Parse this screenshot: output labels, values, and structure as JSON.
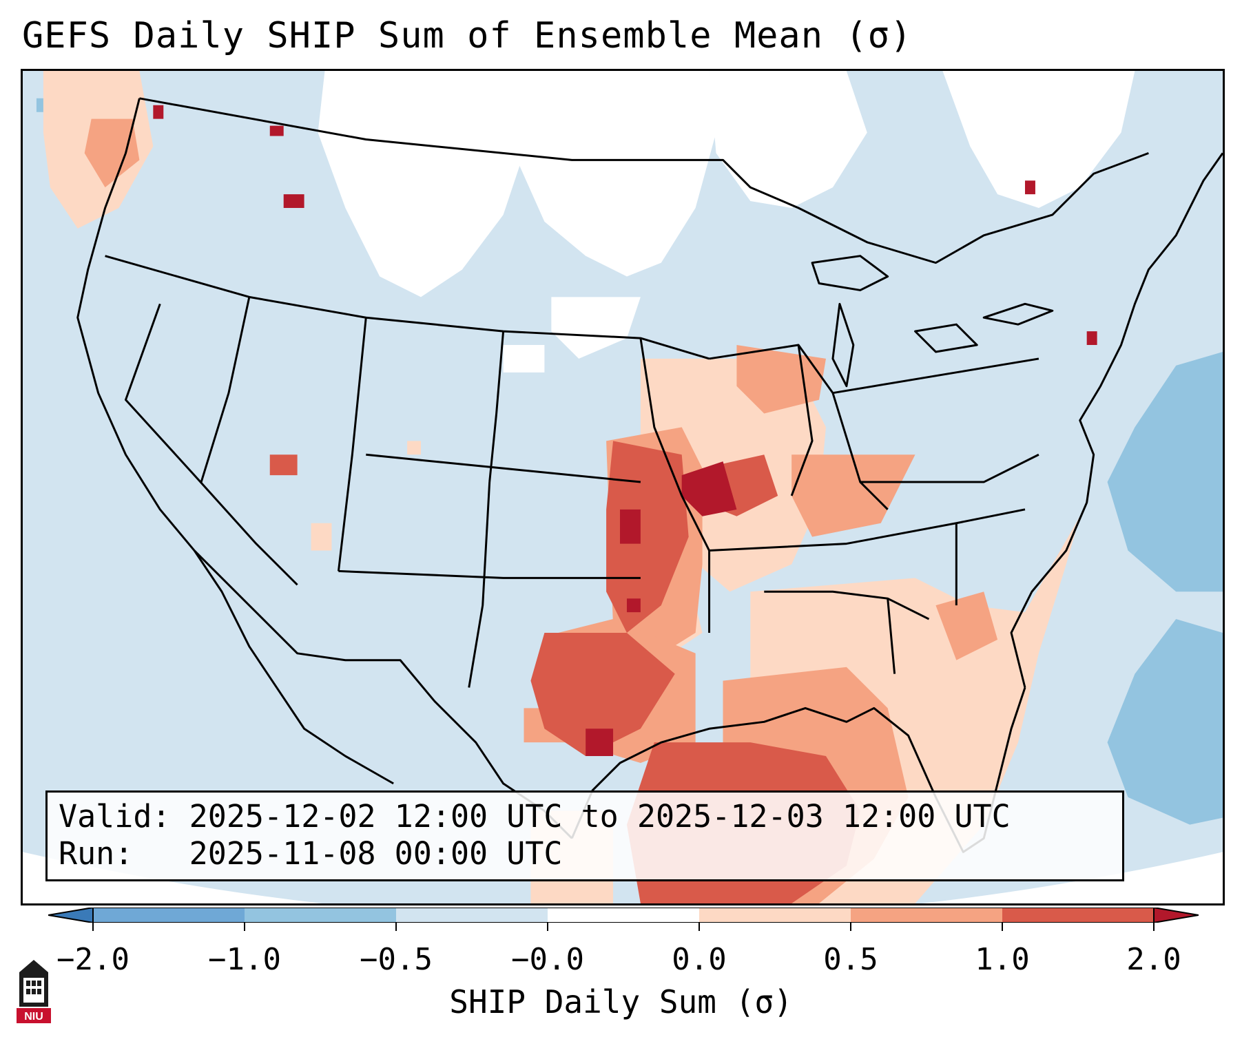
{
  "title": "GEFS Daily SHIP Sum of Ensemble Mean (σ)",
  "info": {
    "valid_line": "Valid: 2025-12-02 12:00 UTC to 2025-12-03 12:00 UTC",
    "run_line": "Run:   2025-11-08 00:00 UTC"
  },
  "colorbar": {
    "label": "SHIP Daily Sum (σ)",
    "ticks": [
      "−2.0",
      "−1.0",
      "−0.5",
      "−0.0",
      "0.0",
      "0.5",
      "1.0",
      "2.0"
    ],
    "colors": [
      "#3a7ab8",
      "#6fa8d6",
      "#93c4e0",
      "#d2e4f0",
      "#ffffff",
      "#fdd9c4",
      "#f5a382",
      "#d95a4a",
      "#b2182b"
    ],
    "extend": "both"
  },
  "logo": {
    "icon": "university-tower-icon",
    "text": "NIU"
  },
  "map": {
    "projection": "lambert-conformal",
    "region": "CONUS",
    "features": [
      "coastlines",
      "country-borders",
      "state-borders",
      "lakes"
    ],
    "background_color": "#d2e4f0"
  }
}
